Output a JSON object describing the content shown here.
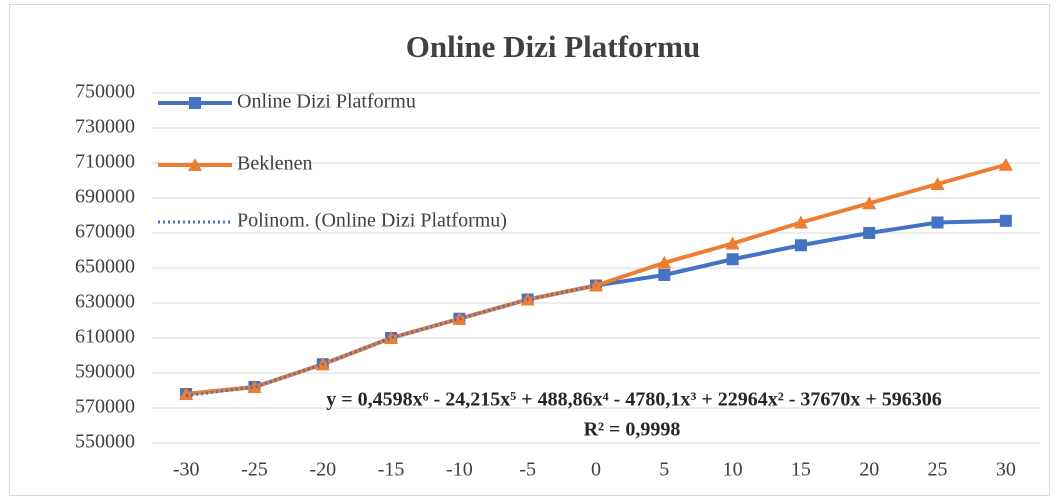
{
  "chart_data": {
    "type": "line",
    "title": "Online Dizi Platformu",
    "x": [
      -30,
      -25,
      -20,
      -15,
      -10,
      -5,
      0,
      5,
      10,
      15,
      20,
      25,
      30
    ],
    "series": [
      {
        "name": "Online Dizi Platformu",
        "color": "#4472c4",
        "marker": "square",
        "values": [
          578000,
          582000,
          595000,
          610000,
          621000,
          632000,
          640000,
          646000,
          655000,
          663000,
          670000,
          676000,
          677000
        ]
      },
      {
        "name": "Beklenen",
        "color": "#ed7d31",
        "marker": "triangle",
        "values": [
          578000,
          582000,
          595000,
          610000,
          621000,
          632000,
          640000,
          653000,
          664000,
          676000,
          687000,
          698000,
          709000
        ]
      },
      {
        "name": "Polinom. (Online Dizi Platformu)",
        "color": "#4472c4",
        "marker": "none",
        "dash": "dotted",
        "values": [
          577000,
          582000,
          595000,
          610000,
          621000,
          632000,
          640000,
          null,
          null,
          null,
          null,
          null,
          null
        ]
      }
    ],
    "annotations": [
      "y = 0,4598x⁶ - 24,215x⁵ + 488,86x⁴ - 4780,1x³ + 22964x² - 37670x + 596306",
      "R² = 0,9998"
    ],
    "xlim": [
      -32.5,
      32.5
    ],
    "xticks": [
      -30,
      -25,
      -20,
      -15,
      -10,
      -5,
      0,
      5,
      10,
      15,
      20,
      25,
      30
    ],
    "ylim": [
      550000,
      750000
    ],
    "yticks": [
      550000,
      570000,
      590000,
      610000,
      630000,
      650000,
      670000,
      690000,
      710000,
      730000,
      750000
    ],
    "grid": true,
    "legend": "top-left"
  }
}
